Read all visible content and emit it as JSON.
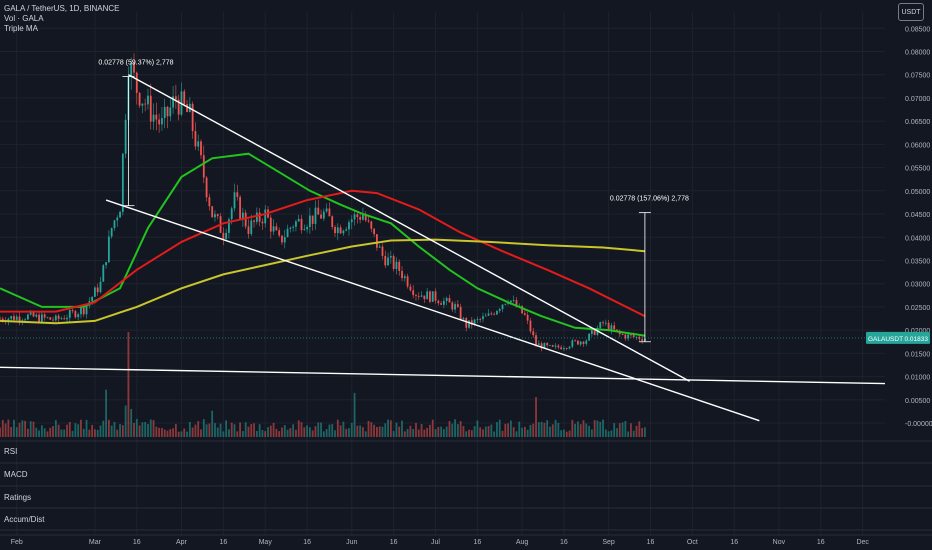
{
  "header": {
    "symbol_line": "GALA / TetherUS, 1D, BINANCE",
    "indicators": [
      "Vol · GALA",
      "Triple MA"
    ]
  },
  "currency_button": "USDT",
  "panes": [
    "RSI",
    "MACD",
    "Ratings",
    "Accum/Dist"
  ],
  "price_tag": {
    "symbol": "GALAUSDT",
    "value": "0.01833",
    "color": "#26a69a"
  },
  "colors": {
    "up": "#26a69a",
    "down": "#ef5350",
    "ma_fast": "#22c31e",
    "ma_mid": "#e21b1b",
    "ma_slow": "#c9c52b",
    "background": "#131722",
    "grid": "#1e222d",
    "drawing": "#ffffff"
  },
  "chart_data": {
    "type": "candlestick",
    "x_ticks": [
      "Feb",
      "Mar",
      "16",
      "Apr",
      "16",
      "May",
      "16",
      "Jun",
      "16",
      "Jul",
      "16",
      "Aug",
      "16",
      "Sep",
      "16",
      "Oct",
      "16",
      "Nov",
      "16",
      "Dec"
    ],
    "y_ticks": [
      "0.08500",
      "0.08000",
      "0.07500",
      "0.07000",
      "0.06500",
      "0.06000",
      "0.05500",
      "0.05000",
      "0.04500",
      "0.04000",
      "0.03500",
      "0.03000",
      "0.02500",
      "0.02000",
      "0.01500",
      "0.01000",
      "0.00500",
      "-0.00000"
    ],
    "y_range": [
      -0.0015,
      0.0885
    ],
    "x_range_days": [
      "2022-01-26",
      "2022-12-09"
    ],
    "candles_close": [
      [
        "2022-01-26",
        0.0225
      ],
      [
        "2022-02-05",
        0.023
      ],
      [
        "2022-02-15",
        0.0222
      ],
      [
        "2022-02-25",
        0.0245
      ],
      [
        "2022-03-03",
        0.03
      ],
      [
        "2022-03-07",
        0.042
      ],
      [
        "2022-03-10",
        0.047
      ],
      [
        "2022-03-13",
        0.078
      ],
      [
        "2022-03-16",
        0.072
      ],
      [
        "2022-03-20",
        0.068
      ],
      [
        "2022-03-25",
        0.064
      ],
      [
        "2022-03-30",
        0.07
      ],
      [
        "2022-04-04",
        0.066
      ],
      [
        "2022-04-08",
        0.056
      ],
      [
        "2022-04-12",
        0.045
      ],
      [
        "2022-04-16",
        0.041
      ],
      [
        "2022-04-20",
        0.048
      ],
      [
        "2022-04-25",
        0.042
      ],
      [
        "2022-05-01",
        0.045
      ],
      [
        "2022-05-06",
        0.039
      ],
      [
        "2022-05-11",
        0.043
      ],
      [
        "2022-05-17",
        0.044
      ],
      [
        "2022-05-22",
        0.045
      ],
      [
        "2022-05-27",
        0.042
      ],
      [
        "2022-06-01",
        0.044
      ],
      [
        "2022-06-05",
        0.045
      ],
      [
        "2022-06-08",
        0.041
      ],
      [
        "2022-06-12",
        0.036
      ],
      [
        "2022-06-18",
        0.033
      ],
      [
        "2022-06-24",
        0.028
      ],
      [
        "2022-07-01",
        0.027
      ],
      [
        "2022-07-08",
        0.025
      ],
      [
        "2022-07-12",
        0.021
      ],
      [
        "2022-07-20",
        0.023
      ],
      [
        "2022-07-27",
        0.027
      ],
      [
        "2022-08-02",
        0.023
      ],
      [
        "2022-08-06",
        0.017
      ],
      [
        "2022-08-12",
        0.016
      ],
      [
        "2022-08-18",
        0.017
      ],
      [
        "2022-08-24",
        0.018
      ],
      [
        "2022-08-30",
        0.0215
      ],
      [
        "2022-09-05",
        0.019
      ],
      [
        "2022-09-10",
        0.0185
      ],
      [
        "2022-09-14",
        0.0183
      ]
    ],
    "moving_averages": [
      {
        "name": "",
        "color": "#22c31e",
        "points": [
          [
            "2022-01-26",
            0.029
          ],
          [
            "2022-02-10",
            0.025
          ],
          [
            "2022-02-25",
            0.025
          ],
          [
            "2022-03-10",
            0.029
          ],
          [
            "2022-03-20",
            0.042
          ],
          [
            "2022-04-01",
            0.053
          ],
          [
            "2022-04-12",
            0.057
          ],
          [
            "2022-04-25",
            0.058
          ],
          [
            "2022-05-06",
            0.054
          ],
          [
            "2022-05-17",
            0.05
          ],
          [
            "2022-05-28",
            0.047
          ],
          [
            "2022-06-05",
            0.045
          ],
          [
            "2022-06-15",
            0.043
          ],
          [
            "2022-06-25",
            0.038
          ],
          [
            "2022-07-06",
            0.033
          ],
          [
            "2022-07-16",
            0.029
          ],
          [
            "2022-07-27",
            0.026
          ],
          [
            "2022-08-08",
            0.023
          ],
          [
            "2022-08-20",
            0.0205
          ],
          [
            "2022-09-01",
            0.02
          ],
          [
            "2022-09-14",
            0.0188
          ]
        ]
      },
      {
        "name": "",
        "color": "#e21b1b",
        "points": [
          [
            "2022-01-26",
            0.024
          ],
          [
            "2022-02-15",
            0.024
          ],
          [
            "2022-03-01",
            0.026
          ],
          [
            "2022-03-16",
            0.033
          ],
          [
            "2022-04-01",
            0.039
          ],
          [
            "2022-04-16",
            0.043
          ],
          [
            "2022-05-01",
            0.045
          ],
          [
            "2022-05-16",
            0.048
          ],
          [
            "2022-06-01",
            0.05
          ],
          [
            "2022-06-10",
            0.0495
          ],
          [
            "2022-06-25",
            0.046
          ],
          [
            "2022-07-10",
            0.041
          ],
          [
            "2022-07-25",
            0.037
          ],
          [
            "2022-08-10",
            0.033
          ],
          [
            "2022-08-25",
            0.029
          ],
          [
            "2022-09-14",
            0.023
          ]
        ]
      },
      {
        "name": "",
        "color": "#c9c52b",
        "points": [
          [
            "2022-01-26",
            0.022
          ],
          [
            "2022-02-15",
            0.0215
          ],
          [
            "2022-03-01",
            0.022
          ],
          [
            "2022-03-16",
            0.025
          ],
          [
            "2022-04-01",
            0.029
          ],
          [
            "2022-04-16",
            0.032
          ],
          [
            "2022-05-01",
            0.034
          ],
          [
            "2022-05-16",
            0.036
          ],
          [
            "2022-06-01",
            0.038
          ],
          [
            "2022-06-15",
            0.0393
          ],
          [
            "2022-07-01",
            0.0395
          ],
          [
            "2022-07-20",
            0.039
          ],
          [
            "2022-08-10",
            0.0383
          ],
          [
            "2022-08-30",
            0.0378
          ],
          [
            "2022-09-14",
            0.037
          ]
        ]
      }
    ],
    "trendlines": [
      {
        "from": [
          "2022-03-13",
          0.075
        ],
        "to": [
          "2022-09-30",
          0.009
        ]
      },
      {
        "from": [
          "2022-03-05",
          0.048
        ],
        "to": [
          "2022-10-25",
          0.0005
        ]
      },
      {
        "from": [
          "2022-01-26",
          0.012
        ],
        "to": [
          "2022-12-09",
          0.0085
        ]
      }
    ],
    "measures": [
      {
        "label": "0.02778 (59.37%) 2,778",
        "x": "2022-03-13",
        "from": 0.0468,
        "to": 0.0746
      },
      {
        "label": "0.02778 (157.06%) 2,778",
        "x": "2022-09-14",
        "from": 0.0175,
        "to": 0.0453
      }
    ],
    "volume_spikes": [
      [
        "2022-03-13",
        1.0
      ],
      [
        "2022-03-05",
        0.45
      ],
      [
        "2022-06-02",
        0.42
      ],
      [
        "2022-08-06",
        0.38
      ],
      [
        "2022-04-12",
        0.25
      ]
    ]
  }
}
